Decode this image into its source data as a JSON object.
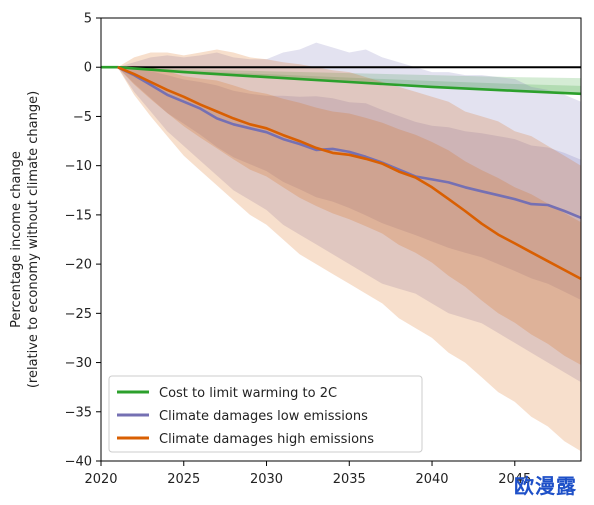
{
  "chart_data": {
    "type": "line",
    "title": "",
    "xlabel": "",
    "ylabel_line1": "Percentage income change",
    "ylabel_line2": "(relative to economy without climate change)",
    "xlim": [
      2020,
      2049
    ],
    "ylim": [
      -40,
      5
    ],
    "xticks": [
      2020,
      2025,
      2030,
      2035,
      2040,
      2045
    ],
    "yticks": [
      5,
      0,
      -5,
      -10,
      -15,
      -20,
      -25,
      -30,
      -35,
      -40
    ],
    "grid": false,
    "legend_position": "lower-left",
    "zero_line": true,
    "series": [
      {
        "name": "Cost to limit warming to 2C",
        "color": "#2ca02c",
        "x": [
          2020,
          2021,
          2025,
          2030,
          2035,
          2040,
          2045,
          2049
        ],
        "y": [
          0,
          0,
          -0.5,
          -1.0,
          -1.5,
          -2.0,
          -2.4,
          -2.7
        ],
        "band_upper": [
          0,
          0,
          -0.2,
          -0.4,
          -0.6,
          -0.8,
          -1.0,
          -1.1
        ],
        "band_lower": [
          0,
          0,
          -0.5,
          -1.0,
          -1.5,
          -2.0,
          -2.4,
          -2.7
        ]
      },
      {
        "name": "Climate damages low emissions",
        "color": "#7570b3",
        "x": [
          2021,
          2022,
          2023,
          2024,
          2025,
          2026,
          2027,
          2028,
          2029,
          2030,
          2031,
          2032,
          2033,
          2034,
          2035,
          2036,
          2037,
          2038,
          2039,
          2040,
          2041,
          2042,
          2043,
          2044,
          2045,
          2046,
          2047,
          2048,
          2049
        ],
        "y": [
          0,
          -0.8,
          -1.8,
          -2.8,
          -3.5,
          -4.2,
          -5.2,
          -5.8,
          -6.2,
          -6.6,
          -7.3,
          -7.8,
          -8.4,
          -8.3,
          -8.6,
          -9.1,
          -9.7,
          -10.4,
          -11.1,
          -11.4,
          -11.7,
          -12.2,
          -12.6,
          -13.0,
          -13.4,
          -13.9,
          -14.0,
          -14.6,
          -15.3
        ],
        "band_upper": [
          0,
          0.5,
          1.0,
          1.2,
          1.0,
          1.2,
          1.5,
          1.0,
          0.8,
          0.8,
          1.5,
          1.8,
          2.5,
          2.0,
          1.5,
          1.8,
          1.0,
          0.5,
          0.0,
          -0.5,
          -0.5,
          -0.8,
          -0.8,
          -1.0,
          -1.2,
          -2.0,
          -2.3,
          -2.8,
          -3.5
        ],
        "band_lower": [
          0,
          -2.5,
          -4.5,
          -6.5,
          -8.0,
          -9.5,
          -11.0,
          -12.5,
          -13.5,
          -14.5,
          -16.0,
          -17.0,
          -18.0,
          -19.0,
          -20.0,
          -21.0,
          -22.0,
          -22.5,
          -23.0,
          -24.0,
          -25.0,
          -25.5,
          -26.0,
          -27.0,
          -28.0,
          -29.0,
          -30.0,
          -31.0,
          -32.0
        ]
      },
      {
        "name": "Climate damages high emissions",
        "color": "#d95f02",
        "x": [
          2021,
          2022,
          2023,
          2024,
          2025,
          2026,
          2027,
          2028,
          2029,
          2030,
          2031,
          2032,
          2033,
          2034,
          2035,
          2036,
          2037,
          2038,
          2039,
          2040,
          2041,
          2042,
          2043,
          2044,
          2045,
          2046,
          2047,
          2048,
          2049
        ],
        "y": [
          0,
          -0.7,
          -1.5,
          -2.3,
          -3.0,
          -3.8,
          -4.5,
          -5.2,
          -5.8,
          -6.2,
          -6.9,
          -7.5,
          -8.2,
          -8.7,
          -8.9,
          -9.3,
          -9.8,
          -10.6,
          -11.2,
          -12.2,
          -13.4,
          -14.6,
          -15.9,
          -17.0,
          -17.9,
          -18.8,
          -19.7,
          -20.6,
          -21.5
        ],
        "band_upper": [
          0,
          1.0,
          1.5,
          1.5,
          1.2,
          1.5,
          1.8,
          1.5,
          1.0,
          0.8,
          0.5,
          0.3,
          0.0,
          -0.3,
          -0.5,
          -1.0,
          -1.5,
          -2.0,
          -2.5,
          -3.0,
          -3.5,
          -4.5,
          -5.0,
          -5.5,
          -6.5,
          -7.0,
          -8.0,
          -9.0,
          -10.0
        ],
        "band_lower": [
          0,
          -2.8,
          -5.0,
          -7.0,
          -9.0,
          -10.5,
          -12.0,
          -13.5,
          -15.0,
          -16.0,
          -17.5,
          -19.0,
          -20.0,
          -21.0,
          -22.0,
          -23.0,
          -24.0,
          -25.5,
          -26.5,
          -27.5,
          -29.0,
          -30.0,
          -31.5,
          -33.0,
          -34.0,
          -35.5,
          -36.5,
          -38.0,
          -39.0
        ]
      }
    ]
  },
  "watermark_text": "欧漫露"
}
